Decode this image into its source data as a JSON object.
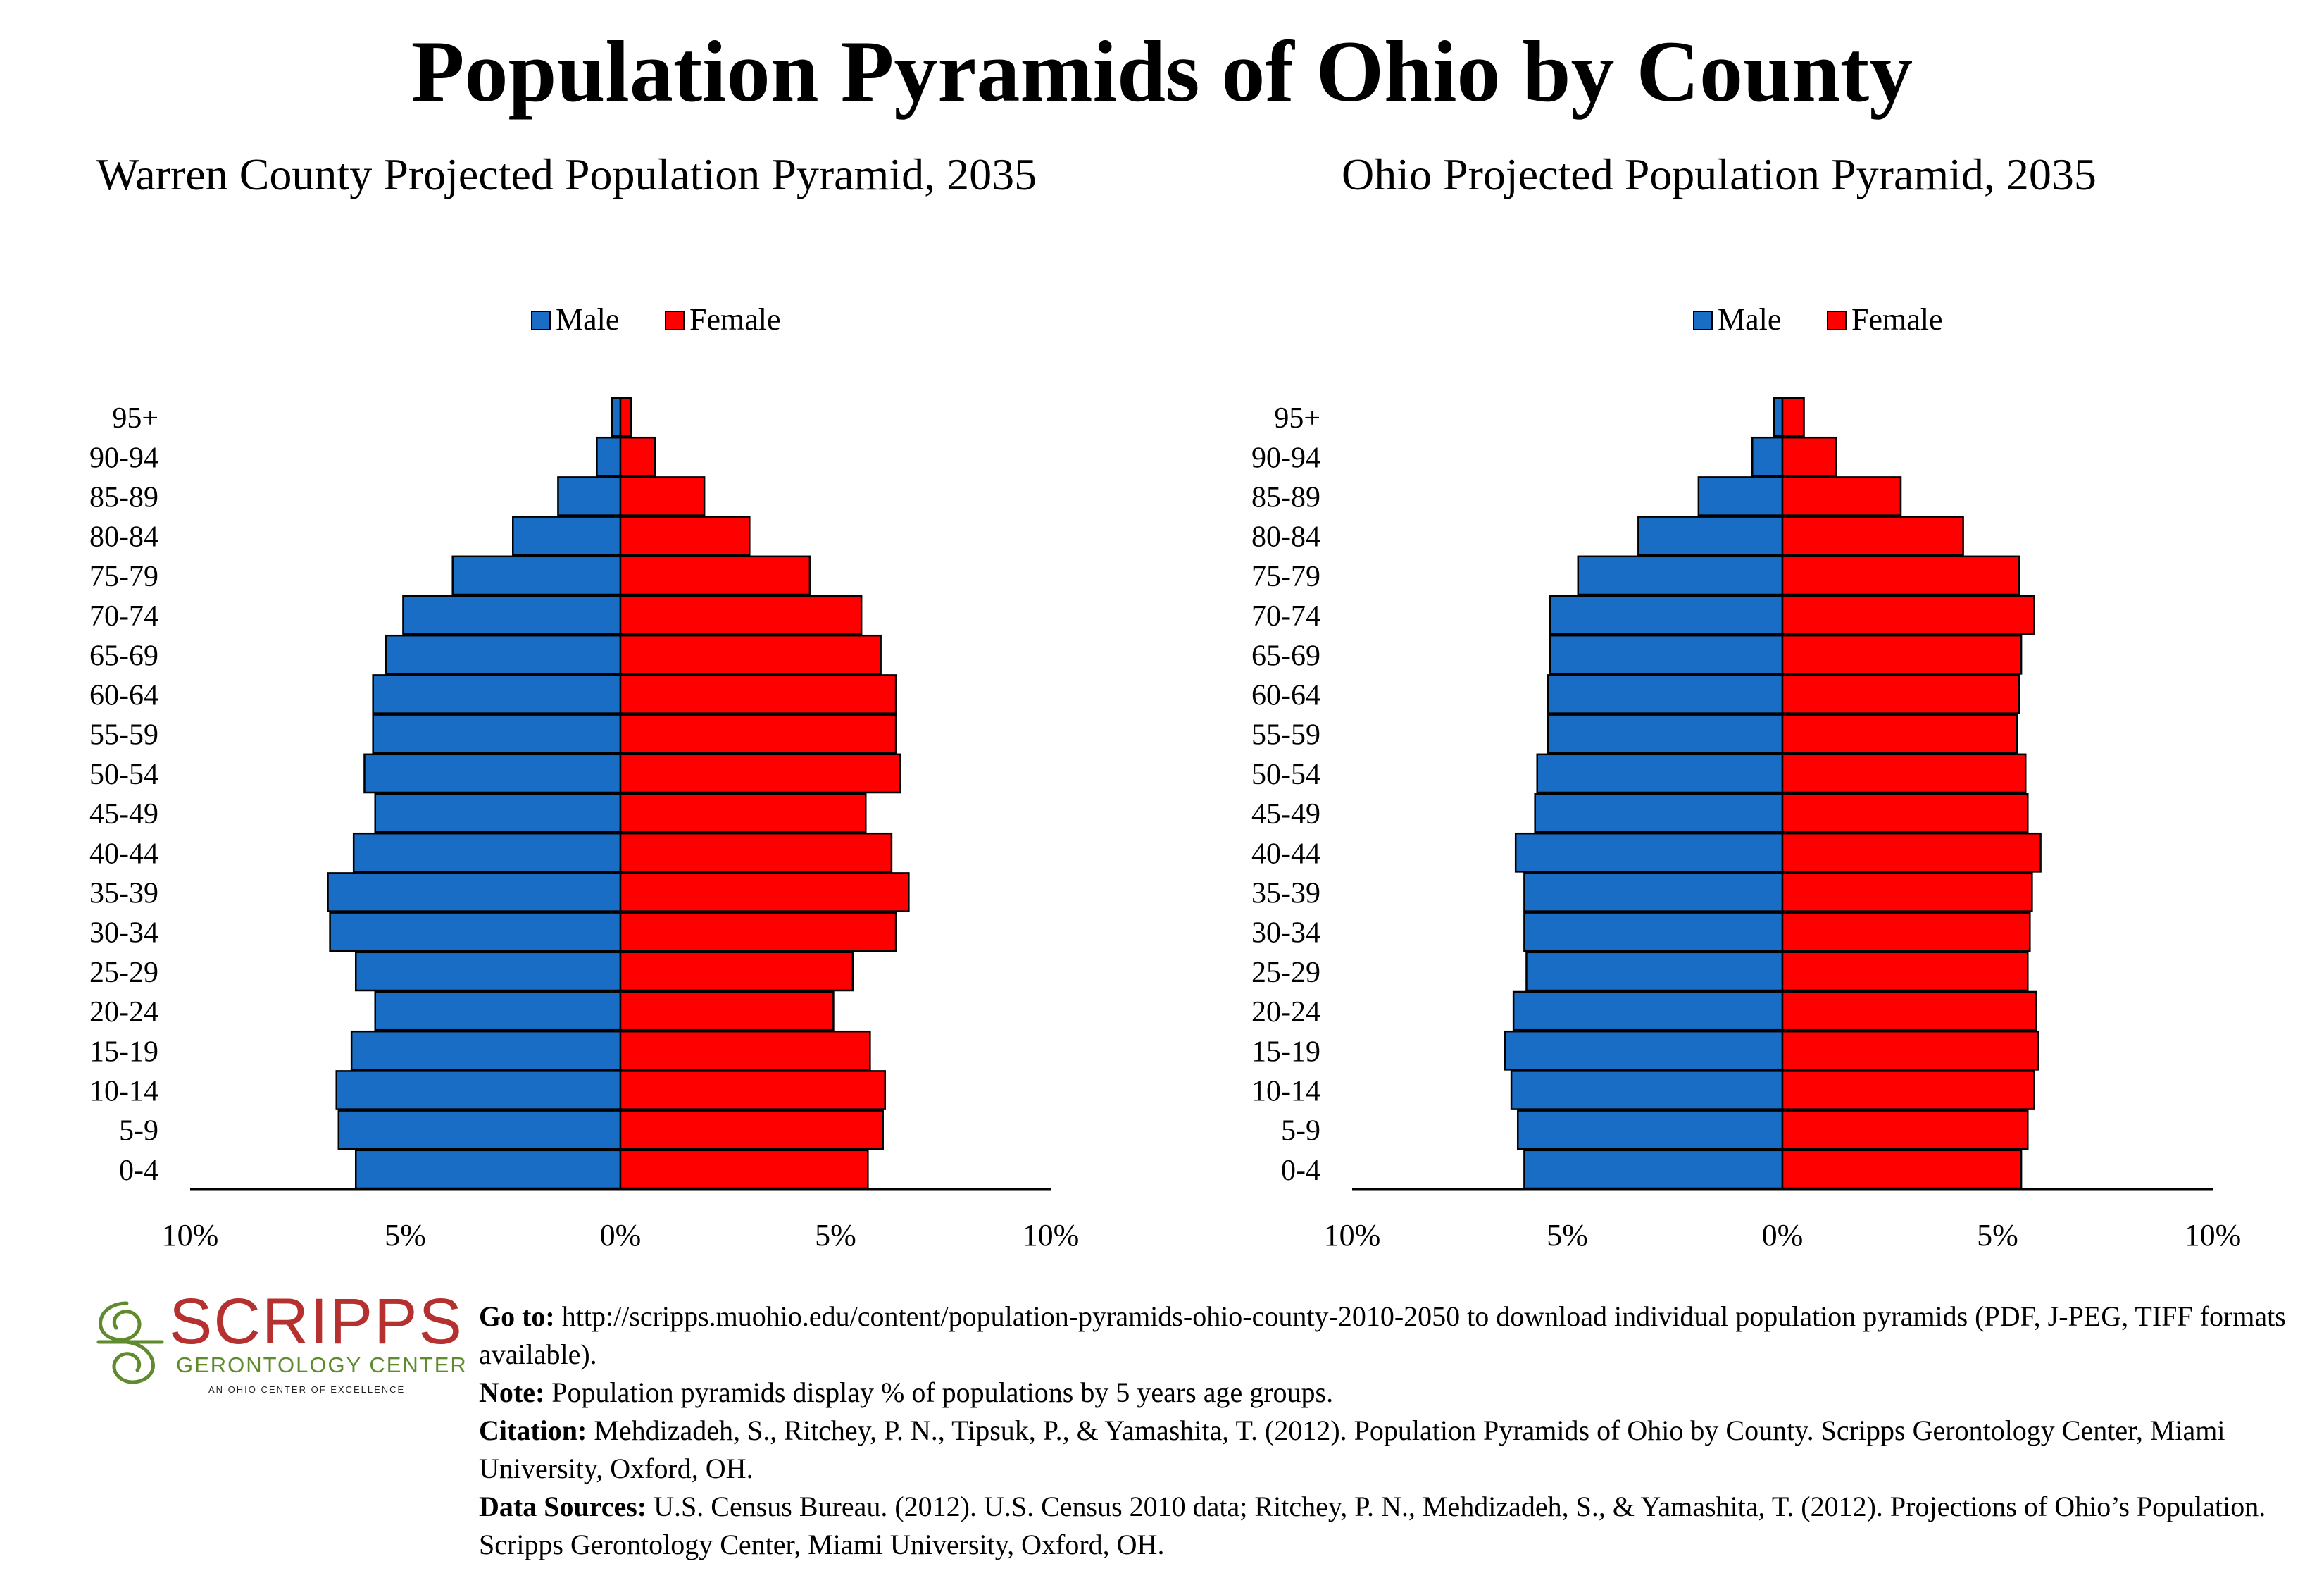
{
  "page": {
    "title": "Population Pyramids of Ohio by County"
  },
  "chart_data": [
    {
      "type": "bar",
      "orientation": "horizontal-pyramid",
      "title": "Warren County Projected Population Pyramid, 2035",
      "categories": [
        "95+",
        "90-94",
        "85-89",
        "80-84",
        "75-79",
        "70-74",
        "65-69",
        "60-64",
        "55-59",
        "50-54",
        "45-49",
        "40-44",
        "35-39",
        "30-34",
        "25-29",
        "20-24",
        "15-19",
        "10-14",
        "5-9",
        "0-4"
      ],
      "series": [
        {
          "name": "Male",
          "color": "#1a6dc4",
          "values": [
            0.2,
            0.55,
            1.45,
            2.5,
            3.9,
            5.05,
            5.45,
            5.75,
            5.75,
            5.95,
            5.7,
            6.2,
            6.8,
            6.75,
            6.15,
            5.7,
            6.25,
            6.6,
            6.55,
            6.15
          ]
        },
        {
          "name": "Female",
          "color": "#ff0000",
          "values": [
            0.25,
            0.8,
            1.95,
            3.0,
            4.4,
            5.6,
            6.05,
            6.4,
            6.4,
            6.5,
            5.7,
            6.3,
            6.7,
            6.4,
            5.4,
            4.95,
            5.8,
            6.15,
            6.1,
            5.75
          ]
        }
      ],
      "xaxis": {
        "ticks": [
          "10%",
          "5%",
          "0%",
          "5%",
          "10%"
        ],
        "range": [
          -10,
          10
        ],
        "unit": "%"
      },
      "legend": {
        "position": "top-center",
        "labels": [
          "Male",
          "Female"
        ]
      },
      "grid": false
    },
    {
      "type": "bar",
      "orientation": "horizontal-pyramid",
      "title": "Ohio Projected Population Pyramid, 2035",
      "categories": [
        "95+",
        "90-94",
        "85-89",
        "80-84",
        "75-79",
        "70-74",
        "65-69",
        "60-64",
        "55-59",
        "50-54",
        "45-49",
        "40-44",
        "35-39",
        "30-34",
        "25-29",
        "20-24",
        "15-19",
        "10-14",
        "5-9",
        "0-4"
      ],
      "series": [
        {
          "name": "Male",
          "color": "#1a6dc4",
          "values": [
            0.2,
            0.7,
            1.95,
            3.35,
            4.75,
            5.4,
            5.4,
            5.45,
            5.45,
            5.7,
            5.75,
            6.2,
            6.0,
            6.0,
            5.95,
            6.25,
            6.45,
            6.3,
            6.15,
            6.0
          ]
        },
        {
          "name": "Female",
          "color": "#ff0000",
          "values": [
            0.5,
            1.25,
            2.75,
            4.2,
            5.5,
            5.85,
            5.55,
            5.5,
            5.45,
            5.65,
            5.7,
            6.0,
            5.8,
            5.75,
            5.7,
            5.9,
            5.95,
            5.85,
            5.7,
            5.55
          ]
        }
      ],
      "xaxis": {
        "ticks": [
          "10%",
          "5%",
          "0%",
          "5%",
          "10%"
        ],
        "range": [
          -10,
          10
        ],
        "unit": "%"
      },
      "legend": {
        "position": "top-center",
        "labels": [
          "Male",
          "Female"
        ]
      },
      "grid": false
    }
  ],
  "logo": {
    "word": "SCRIPPS",
    "subtitle": "GERONTOLOGY CENTER",
    "tagline": "AN OHIO CENTER OF EXCELLENCE",
    "colors": {
      "word": "#b5312f",
      "subtitle": "#5f8b2e"
    }
  },
  "footer": {
    "goto_label": "Go to:",
    "goto_text": " http://scripps.muohio.edu/content/population-pyramids-ohio-county-2010-2050 to download individual population pyramids (PDF, J-PEG, TIFF formats available).",
    "note_label": "Note:",
    "note_text": " Population pyramids display % of populations by 5 years age groups.",
    "citation_label": "Citation:",
    "citation_text": " Mehdizadeh, S., Ritchey, P. N., Tipsuk, P., & Yamashita, T. (2012). Population Pyramids of Ohio by County. Scripps Gerontology Center, Miami University, Oxford, OH.",
    "sources_label": "Data Sources:",
    "sources_text": " U.S. Census Bureau. (2012). U.S. Census 2010 data; Ritchey, P. N., Mehdizadeh, S., & Yamashita, T. (2012). Projections of Ohio’s Population. Scripps Gerontology Center, Miami University, Oxford, OH."
  }
}
